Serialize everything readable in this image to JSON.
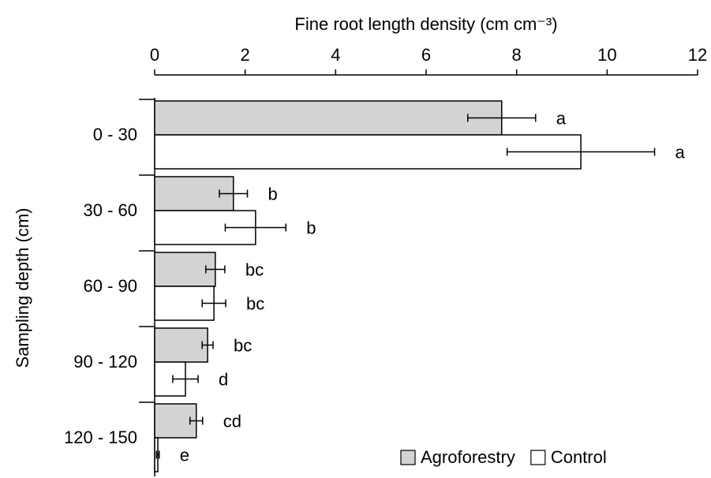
{
  "chart_data": {
    "type": "bar",
    "orientation": "horizontal",
    "x_label": "Fine root length density (cm cm⁻³)",
    "y_label": "Sampling depth (cm)",
    "categories": [
      "0 - 30",
      "30 - 60",
      "60 - 90",
      "90 - 120",
      "120 - 150"
    ],
    "series": [
      {
        "name": "Agroforestry",
        "color": "#d3d3d3",
        "values": [
          7.67,
          1.74,
          1.34,
          1.17,
          0.92
        ],
        "errors": [
          0.75,
          0.31,
          0.21,
          0.12,
          0.14
        ],
        "letters": [
          "a",
          "b",
          "bc",
          "bc",
          "cd"
        ]
      },
      {
        "name": "Control",
        "color": "#ffffff",
        "values": [
          9.42,
          2.23,
          1.31,
          0.68,
          0.07
        ],
        "errors": [
          1.63,
          0.67,
          0.26,
          0.28,
          0.03
        ],
        "letters": [
          "a",
          "b",
          "bc",
          "d",
          "e"
        ]
      }
    ],
    "xlim": [
      0,
      12
    ],
    "xticks": [
      0,
      2,
      4,
      6,
      8,
      10,
      12
    ],
    "x_axis_position": "top",
    "legend": "lower right",
    "grid": false
  }
}
